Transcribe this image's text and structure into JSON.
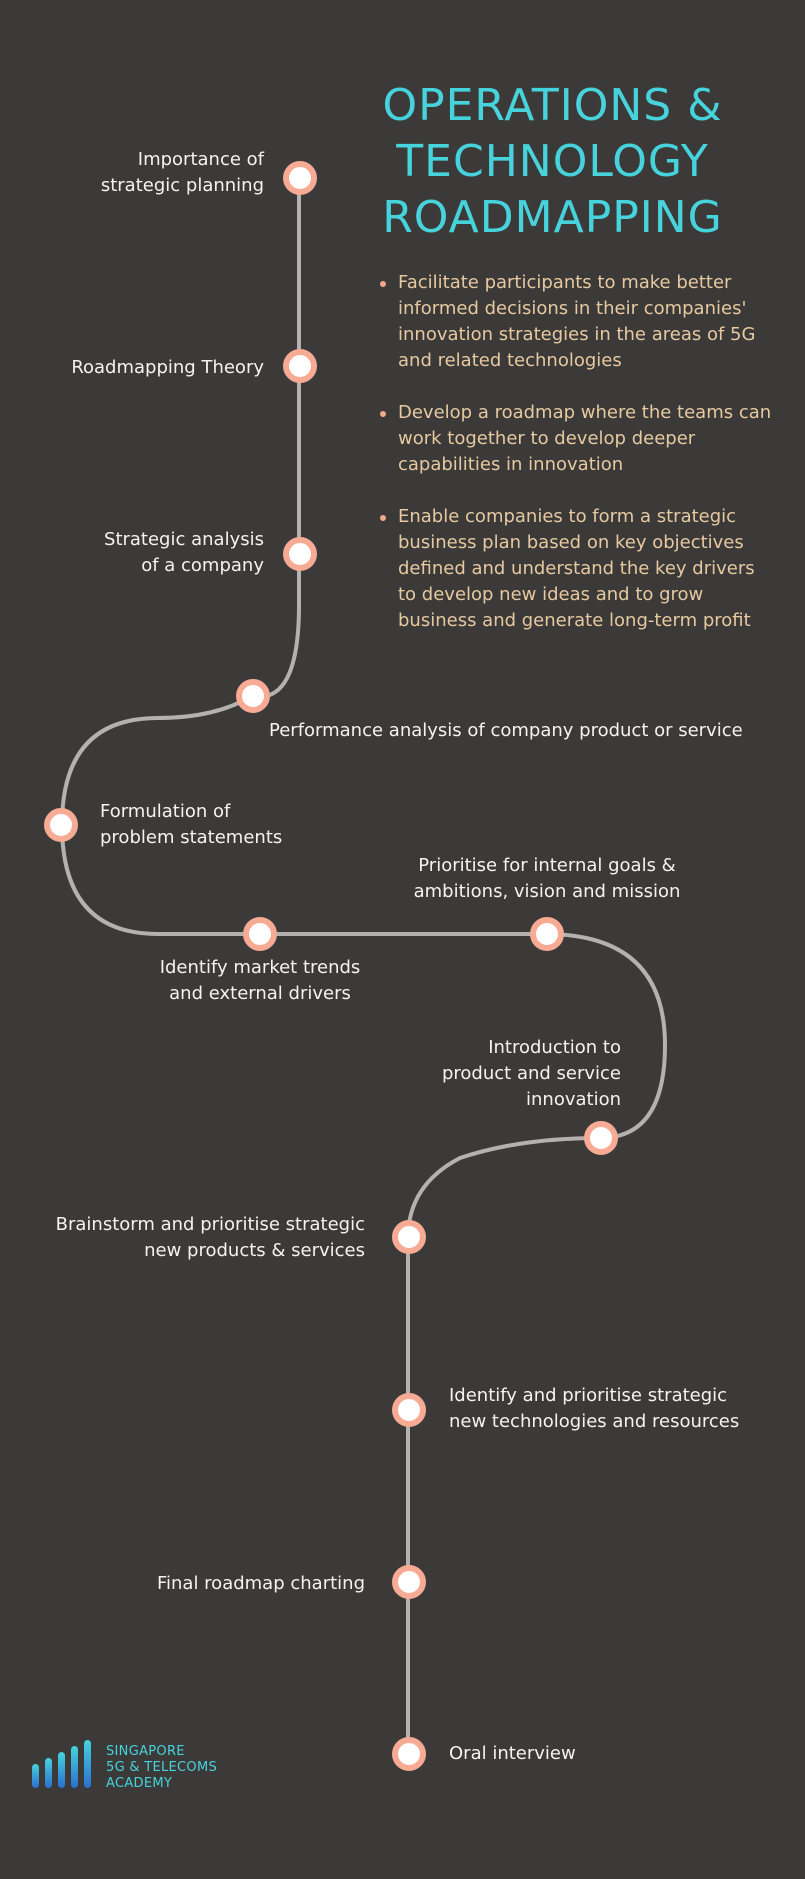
{
  "title": {
    "line1": "OPERATIONS &",
    "line2": "TECHNOLOGY",
    "line3": "ROADMAPPING"
  },
  "bullets": [
    "Facilitate participants to make better informed decisions in their companies' innovation strategies in the areas of 5G and related technologies",
    "Develop a roadmap where the teams can work together to develop deeper capabilities in innovation",
    "Enable companies to form a strategic business plan based on key objectives defined and understand the key drivers to develop new ideas and to grow business and generate long-term profit"
  ],
  "steps": [
    {
      "line1": "Importance of",
      "line2": "strategic planning"
    },
    {
      "line1": "Roadmapping Theory"
    },
    {
      "line1": "Strategic analysis",
      "line2": "of a company"
    },
    {
      "line1": "Performance analysis of company product or service"
    },
    {
      "line1": "Formulation of",
      "line2": "problem statements"
    },
    {
      "line1": "Identify market trends",
      "line2": "and external drivers"
    },
    {
      "line1": "Prioritise for internal goals &",
      "line2": "ambitions, vision and mission"
    },
    {
      "line1": "Introduction to",
      "line2": "product and service",
      "line3": "innovation"
    },
    {
      "line1": "Brainstorm and prioritise strategic",
      "line2": "new products & services"
    },
    {
      "line1": "Identify and prioritise strategic",
      "line2": "new technologies and resources"
    },
    {
      "line1": "Final roadmap charting"
    },
    {
      "line1": "Oral interview"
    }
  ],
  "logo": {
    "line1": "SINGAPORE",
    "line2": "5G & TELECOMS",
    "line3": "ACADEMY"
  },
  "colors": {
    "background": "#3b3a39",
    "title": "#47d3dc",
    "bullet_text": "#e7c9a0",
    "node_ring": "#f7aa94",
    "path": "#b4b2b0",
    "label": "#f3f3f3"
  }
}
